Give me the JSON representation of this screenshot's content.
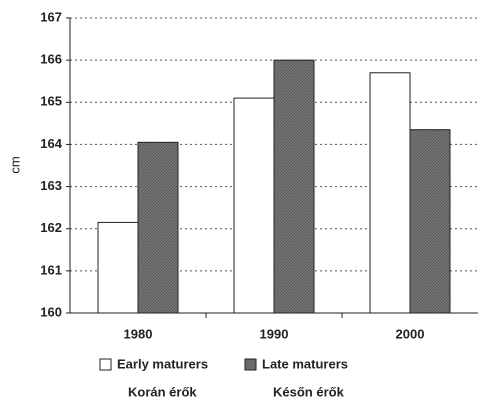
{
  "chart_data": {
    "type": "bar",
    "y_label": "cm",
    "categories": [
      "1980",
      "1990",
      "2000"
    ],
    "series": [
      {
        "name": "Early maturers",
        "alt_name": "Korán érők",
        "color": "#ffffff",
        "values": [
          162.15,
          165.1,
          165.7
        ]
      },
      {
        "name": "Late maturers",
        "alt_name": "Későn érők",
        "color": "#777777",
        "values": [
          164.05,
          166.0,
          164.35
        ]
      }
    ],
    "ylim": [
      160,
      167
    ],
    "yticks": [
      160,
      161,
      162,
      163,
      164,
      165,
      166,
      167
    ],
    "grid": true,
    "legend": "bottom"
  }
}
